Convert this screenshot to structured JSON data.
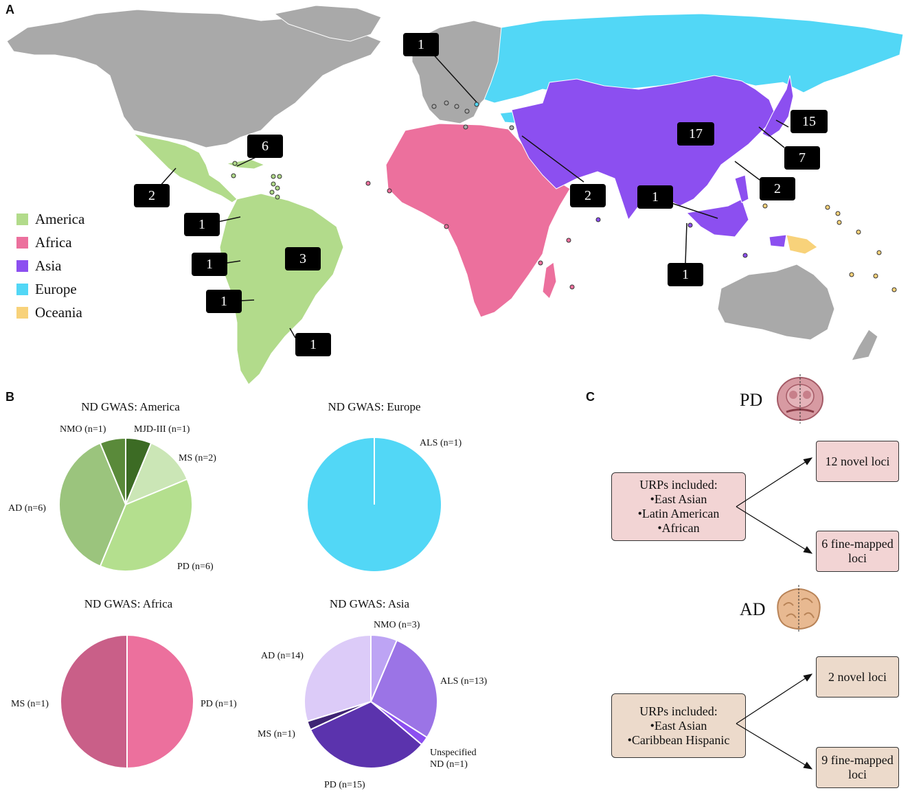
{
  "panels": {
    "a": "A",
    "b": "B",
    "c": "C"
  },
  "legend": [
    {
      "label": "America",
      "color": "#b2db8b"
    },
    {
      "label": "Africa",
      "color": "#ec709d"
    },
    {
      "label": "Asia",
      "color": "#8c4ff0"
    },
    {
      "label": "Europe",
      "color": "#52d7f6"
    },
    {
      "label": "Oceania",
      "color": "#f8d27a"
    }
  ],
  "map_colors": {
    "no_data": "#a9a9a9",
    "america": "#b2db8b",
    "africa": "#ec709d",
    "asia": "#8c4ff0",
    "europe": "#52d7f6",
    "oceania": "#f8d27a"
  },
  "study_counts": [
    "1",
    "6",
    "2",
    "1",
    "1",
    "3",
    "1",
    "1",
    "17",
    "15",
    "7",
    "2",
    "1",
    "2",
    "1"
  ],
  "chart_data": [
    {
      "type": "pie",
      "title": "ND GWAS: America",
      "slices": [
        {
          "label": "MJD-III (n=1)",
          "value": 1,
          "color": "#3c6b24"
        },
        {
          "label": "MS (n=2)",
          "value": 2,
          "color": "#cbe6b6"
        },
        {
          "label": "PD (n=6)",
          "value": 6,
          "color": "#b4df8e"
        },
        {
          "label": "AD (n=6)",
          "value": 6,
          "color": "#9bc47d"
        },
        {
          "label": "NMO (n=1)",
          "value": 1,
          "color": "#5a8a3a"
        }
      ]
    },
    {
      "type": "pie",
      "title": "ND GWAS: Europe",
      "slices": [
        {
          "label": "ALS (n=1)",
          "value": 1,
          "color": "#52d7f6"
        }
      ]
    },
    {
      "type": "pie",
      "title": "ND GWAS: Africa",
      "slices": [
        {
          "label": "PD (n=1)",
          "value": 1,
          "color": "#ec709d"
        },
        {
          "label": "MS (n=1)",
          "value": 1,
          "color": "#c95f88"
        }
      ]
    },
    {
      "type": "pie",
      "title": "ND GWAS: Asia",
      "slices": [
        {
          "label": "NMO (n=3)",
          "value": 3,
          "color": "#bda4f4"
        },
        {
          "label": "ALS (n=13)",
          "value": 13,
          "color": "#9b74e6"
        },
        {
          "label": "Unspecified ND (n=1)",
          "value": 1,
          "color": "#8c4ff0"
        },
        {
          "label": "PD (n=15)",
          "value": 15,
          "color": "#5b33ad"
        },
        {
          "label": "MS (n=1)",
          "value": 1,
          "color": "#3f2474"
        },
        {
          "label": "AD (n=14)",
          "value": 14,
          "color": "#dccbf8"
        }
      ]
    }
  ],
  "unspecified_label": {
    "line1": "Unspecified",
    "line2": "ND (n=1)"
  },
  "panel_c": {
    "pd": {
      "heading": "PD",
      "urp_title": "URPs included:",
      "urp_items": [
        "•East Asian",
        "•Latin American",
        "•African"
      ],
      "result1": "12 novel loci",
      "result2_line1": "6 fine-mapped",
      "result2_line2": "loci",
      "box_color": "#f2d4d4"
    },
    "ad": {
      "heading": "AD",
      "urp_title": "URPs included:",
      "urp_items": [
        "•East Asian",
        "•Caribbean Hispanic"
      ],
      "result1": "2 novel loci",
      "result2_line1": "9 fine-mapped",
      "result2_line2": "loci",
      "box_color": "#ecdacb"
    }
  }
}
